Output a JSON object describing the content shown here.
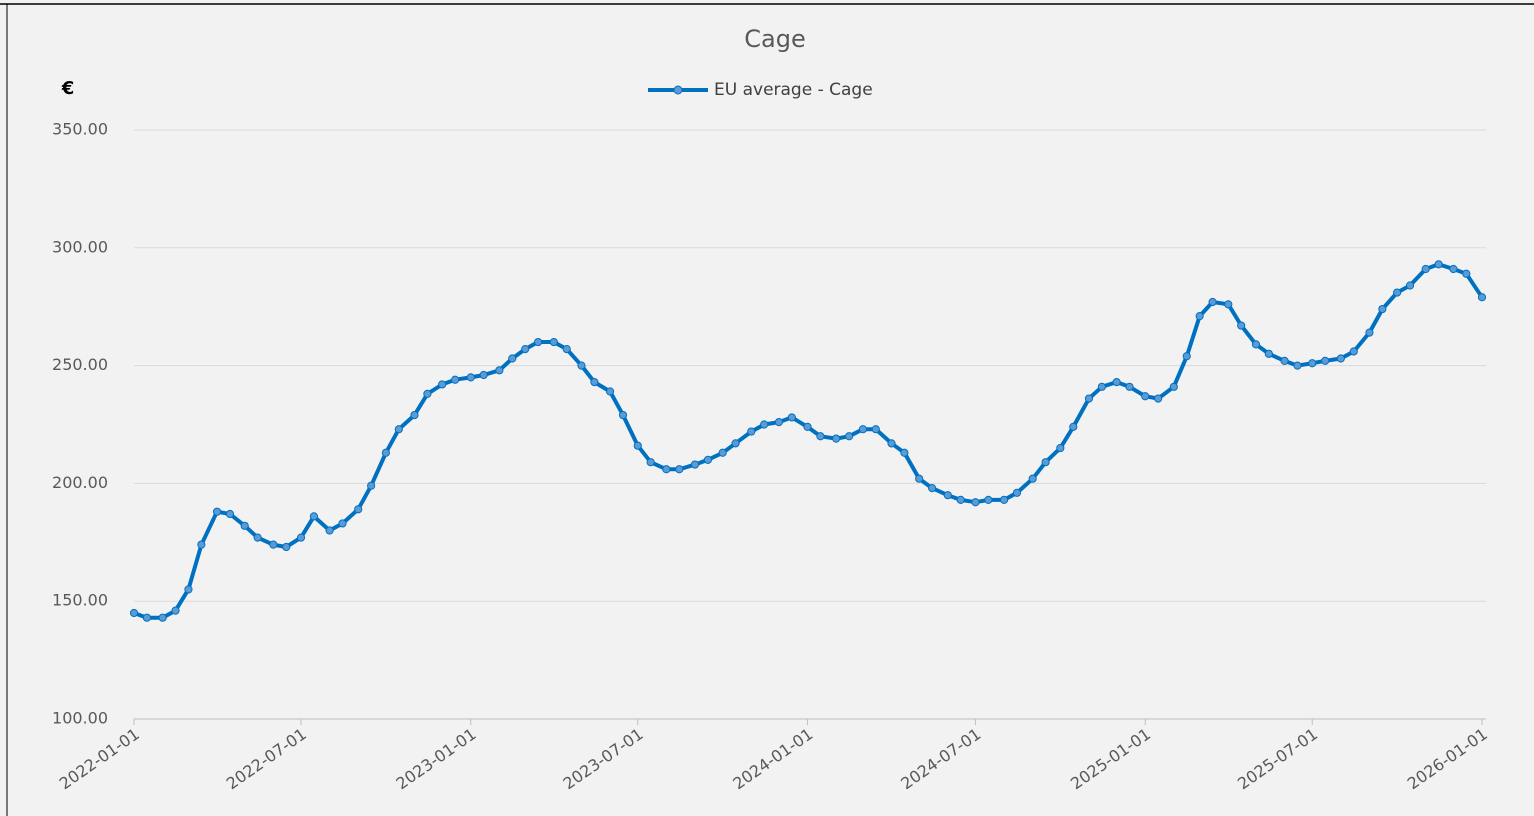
{
  "chart_data": {
    "type": "line",
    "title": "Cage",
    "y_label": "€",
    "x": [
      "2022-01-01",
      "2022-01-15",
      "2022-02-01",
      "2022-02-15",
      "2022-03-01",
      "2022-03-15",
      "2022-04-01",
      "2022-04-15",
      "2022-05-01",
      "2022-05-15",
      "2022-06-01",
      "2022-06-15",
      "2022-07-01",
      "2022-07-15",
      "2022-08-01",
      "2022-08-15",
      "2022-09-01",
      "2022-09-15",
      "2022-10-01",
      "2022-10-15",
      "2022-11-01",
      "2022-11-15",
      "2022-12-01",
      "2022-12-15",
      "2023-01-01",
      "2023-01-15",
      "2023-02-01",
      "2023-02-15",
      "2023-03-01",
      "2023-03-15",
      "2023-04-01",
      "2023-04-15",
      "2023-05-01",
      "2023-05-15",
      "2023-06-01",
      "2023-06-15",
      "2023-07-01",
      "2023-07-15",
      "2023-08-01",
      "2023-08-15",
      "2023-09-01",
      "2023-09-15",
      "2023-10-01",
      "2023-10-15",
      "2023-11-01",
      "2023-11-15",
      "2023-12-01",
      "2023-12-15",
      "2024-01-01",
      "2024-01-15",
      "2024-02-01",
      "2024-02-15",
      "2024-03-01",
      "2024-03-15",
      "2024-04-01",
      "2024-04-15",
      "2024-05-01",
      "2024-05-15",
      "2024-06-01",
      "2024-06-15",
      "2024-07-01",
      "2024-07-15",
      "2024-08-01",
      "2024-08-15",
      "2024-09-01",
      "2024-09-15",
      "2024-10-01",
      "2024-10-15",
      "2024-11-01",
      "2024-11-15",
      "2024-12-01",
      "2024-12-15",
      "2025-01-01",
      "2025-01-15",
      "2025-02-01",
      "2025-02-15",
      "2025-03-01",
      "2025-03-15",
      "2025-04-01",
      "2025-04-15",
      "2025-05-01",
      "2025-05-15",
      "2025-06-01",
      "2025-06-15",
      "2025-07-01",
      "2025-07-15",
      "2025-08-01",
      "2025-08-15",
      "2025-09-01",
      "2025-09-15",
      "2025-10-01",
      "2025-10-15",
      "2025-11-01",
      "2025-11-15",
      "2025-12-01",
      "2025-12-15",
      "2026-01-01"
    ],
    "series": [
      {
        "name": "EU average - Cage",
        "color": "#0070c0",
        "marker_color": "#5b9bd5",
        "values": [
          145,
          143,
          143,
          146,
          155,
          174,
          188,
          187,
          182,
          177,
          174,
          173,
          177,
          186,
          180,
          183,
          189,
          199,
          213,
          223,
          229,
          238,
          242,
          244,
          245,
          246,
          248,
          253,
          257,
          260,
          260,
          257,
          250,
          243,
          239,
          229,
          216,
          209,
          206,
          206,
          208,
          210,
          213,
          217,
          222,
          225,
          226,
          228,
          224,
          220,
          219,
          220,
          223,
          223,
          217,
          213,
          202,
          198,
          195,
          193,
          192,
          193,
          193,
          196,
          202,
          209,
          215,
          224,
          236,
          241,
          243,
          241,
          237,
          236,
          241,
          254,
          271,
          277,
          276,
          267,
          259,
          255,
          252,
          250,
          251,
          252,
          253,
          256,
          264,
          274,
          281,
          284,
          291,
          293,
          291,
          289,
          279
        ]
      }
    ],
    "xlim": [
      "2022-01-01",
      "2026-01-01"
    ],
    "xticks": [
      "2022-01-01",
      "2022-07-01",
      "2023-01-01",
      "2023-07-01",
      "2024-01-01",
      "2024-07-01",
      "2025-01-01",
      "2025-07-01",
      "2026-01-01"
    ],
    "ylim": [
      100,
      350
    ],
    "yticks": [
      {
        "value": 100,
        "label": "100.00"
      },
      {
        "value": 150,
        "label": "150.00"
      },
      {
        "value": 200,
        "label": "200.00"
      },
      {
        "value": 250,
        "label": "250.00"
      },
      {
        "value": 300,
        "label": "300.00"
      },
      {
        "value": 350,
        "label": "350.00"
      }
    ],
    "grid": true,
    "legend": "top"
  }
}
